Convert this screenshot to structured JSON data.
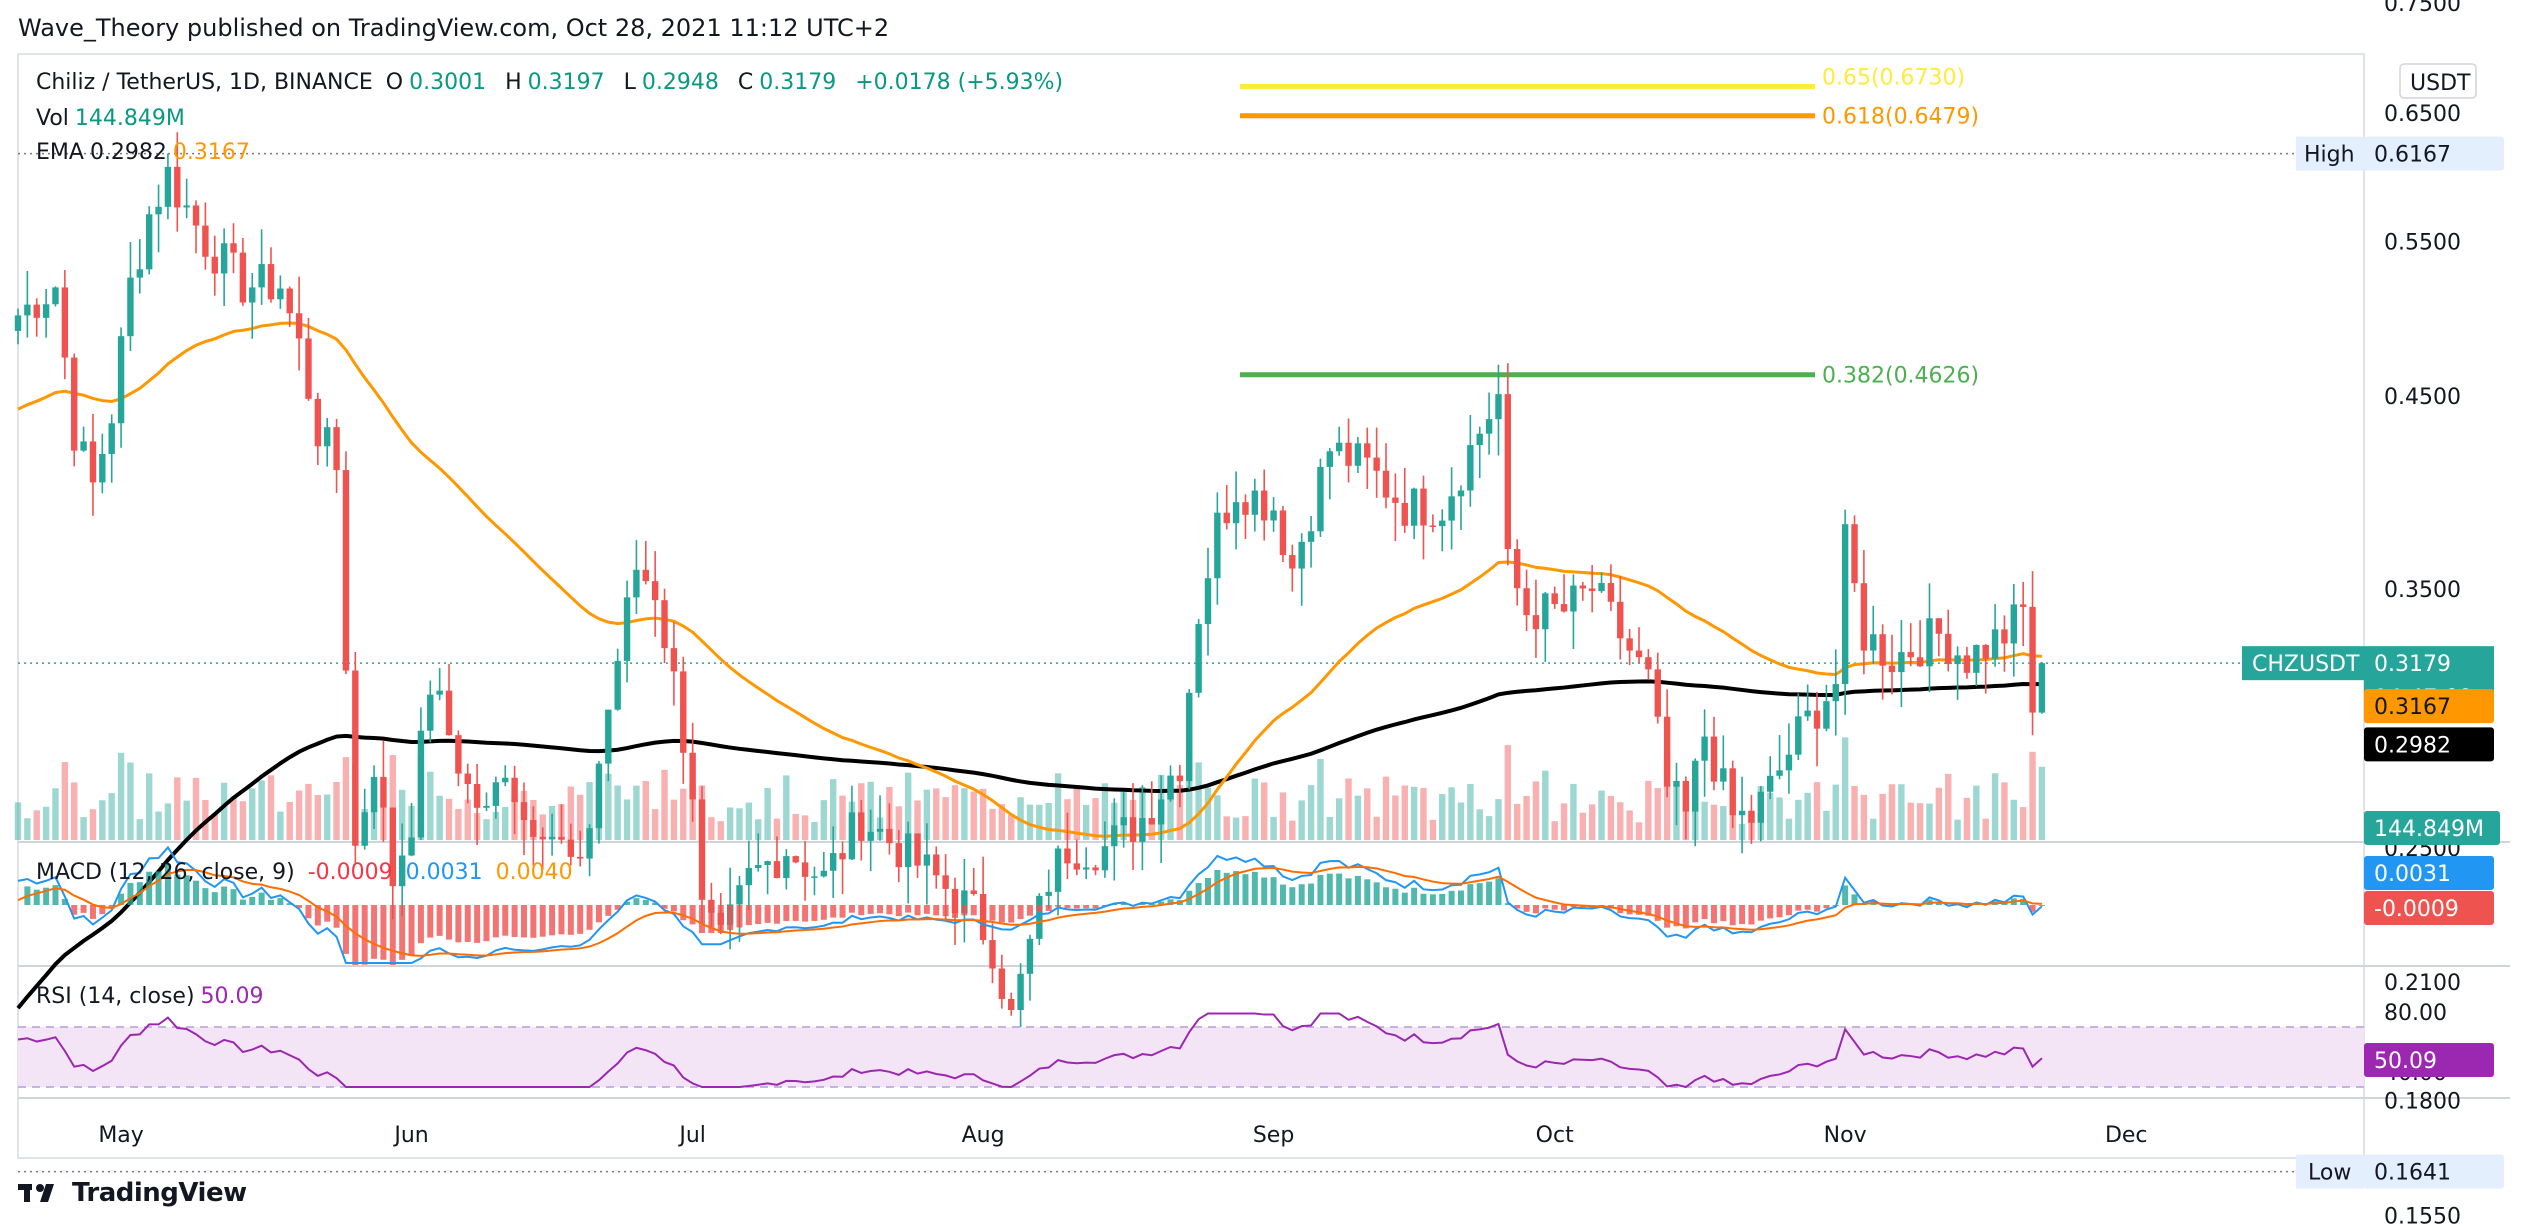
{
  "header": {
    "publisher": "Wave_Theory published on TradingView.com, Oct 28, 2021 11:12 UTC+2"
  },
  "legend": {
    "symbol": "Chiliz / TetherUS, 1D, BINANCE",
    "o_label": "O",
    "o_value": "0.3001",
    "h_label": "H",
    "h_value": "0.3197",
    "l_label": "L",
    "l_value": "0.2948",
    "c_label": "C",
    "c_value": "0.3179",
    "change": "+0.0178 (+5.93%)",
    "vol_label": "Vol",
    "vol_value": "144.849M",
    "ema_label": "EMA",
    "ema_value1": "0.2982",
    "ema_value2": "0.3167",
    "macd_label": "MACD (12, 26, close, 9)",
    "macd_v1": "-0.0009",
    "macd_v2": "0.0031",
    "macd_v3": "0.0040",
    "rsi_label": "RSI (14, close)",
    "rsi_value": "50.09"
  },
  "colors": {
    "up": "#26a69a",
    "down": "#ef5350",
    "ema_fast": "#ff9800",
    "ema_slow": "#000000",
    "fib_618": "#ff9800",
    "fib_65": "#ffeb3b",
    "fib_382": "#4caf50",
    "macd": "#2196f3",
    "signal": "#ff6d00",
    "rsi": "#9c27b0",
    "rsi_band": "#f3e5f5"
  },
  "chart_data": {
    "type": "candlestick",
    "symbol": "CHZUSDT",
    "price_scale": "log",
    "currency_label": "USDT",
    "price_ticks": [
      "0.7500",
      "0.6500",
      "0.5500",
      "0.4500",
      "0.3500",
      "0.2500",
      "0.2100",
      "0.1800",
      "0.1550"
    ],
    "x_ticks": [
      "May",
      "Jun",
      "Jul",
      "Aug",
      "Sep",
      "Oct",
      "Nov",
      "Dec"
    ],
    "last_price": "0.3179",
    "countdown": "14:47:09",
    "ema_fast_last": "0.3167",
    "ema_slow_last": "0.2982",
    "high": {
      "label": "High",
      "value": "0.6167"
    },
    "low": {
      "label": "Low",
      "value": "0.1641"
    },
    "fib_levels": [
      {
        "label": "0.65(0.6730)",
        "value": 0.673
      },
      {
        "label": "0.618(0.6479)",
        "value": 0.6479
      },
      {
        "label": "0.382(0.4626)",
        "value": 0.4626
      }
    ],
    "volume_last": "144.849M",
    "macd_badges": {
      "macd": "0.0031",
      "hist": "-0.0009",
      "signal": "0.0040"
    },
    "rsi": {
      "last": "50.09",
      "ticks": [
        "80.00",
        "40.00"
      ],
      "band": [
        30,
        70
      ]
    }
  }
}
